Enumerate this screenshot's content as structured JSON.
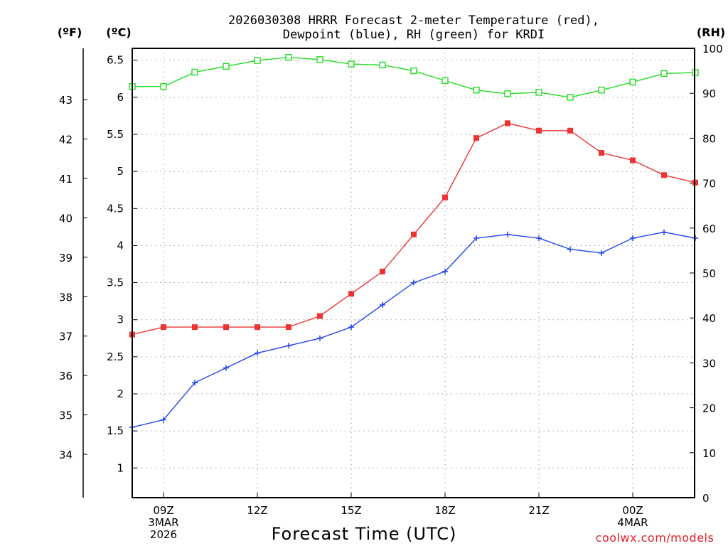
{
  "chart_data": {
    "type": "line",
    "title_lines": [
      "2026030308 HRRR Forecast 2-meter Temperature (red),",
      "Dewpoint (blue), RH (green) for KRDI"
    ],
    "xlabel": "Forecast Time (UTC)",
    "credit": "coolwx.com/models",
    "axes": {
      "fahrenheit": {
        "label": "(ºF)",
        "ticks": [
          "34",
          "35",
          "36",
          "37",
          "38",
          "39",
          "40",
          "41",
          "42",
          "43"
        ],
        "range": [
          32.9,
          44.3
        ]
      },
      "celsius": {
        "label": "(ºC)",
        "ticks": [
          "1",
          "1.5",
          "2",
          "2.5",
          "3",
          "3.5",
          "4",
          "4.5",
          "5",
          "5.5",
          "6",
          "6.5"
        ],
        "range": [
          0.6,
          6.66
        ]
      },
      "rh": {
        "label": "(RH)",
        "ticks": [
          "0",
          "10",
          "20",
          "30",
          "40",
          "50",
          "60",
          "70",
          "80",
          "90",
          "100"
        ],
        "range": [
          0,
          100
        ]
      }
    },
    "x": {
      "hours_from_start": [
        0,
        1,
        2,
        3,
        4,
        5,
        6,
        7,
        8,
        9,
        10,
        11,
        12,
        13,
        14,
        15,
        16,
        17,
        18
      ],
      "start_hour_utc": 8,
      "tick_hours": [
        1,
        4,
        7,
        10,
        13,
        16
      ],
      "tick_labels": [
        [
          "09Z",
          "3MAR",
          "2026"
        ],
        [
          "12Z"
        ],
        [
          "15Z"
        ],
        [
          "18Z"
        ],
        [
          "21Z"
        ],
        [
          "00Z",
          "4MAR"
        ]
      ]
    },
    "series": [
      {
        "name": "2-meter Temperature",
        "axis": "celsius",
        "color": "#ee3333",
        "marker": "filled-square",
        "values": [
          2.8,
          2.9,
          2.9,
          2.9,
          2.9,
          2.9,
          3.05,
          3.35,
          3.65,
          4.15,
          4.65,
          5.45,
          5.65,
          5.55,
          5.55,
          5.25,
          5.15,
          4.95,
          4.85
        ]
      },
      {
        "name": "Dewpoint",
        "axis": "celsius",
        "color": "#2244ee",
        "marker": "plus",
        "values": [
          1.55,
          1.65,
          2.15,
          2.35,
          2.55,
          2.65,
          2.75,
          2.9,
          3.2,
          3.5,
          3.65,
          4.1,
          4.15,
          4.1,
          3.95,
          3.9,
          4.1,
          4.18,
          4.1
        ]
      },
      {
        "name": "RH",
        "axis": "rh",
        "color": "#22dd22",
        "marker": "open-square",
        "values": [
          91.5,
          91.5,
          94.7,
          96.0,
          97.3,
          98.0,
          97.5,
          96.5,
          96.3,
          95.0,
          92.8,
          90.7,
          89.9,
          90.2,
          89.1,
          90.7,
          92.5,
          94.4,
          94.6
        ]
      }
    ]
  }
}
